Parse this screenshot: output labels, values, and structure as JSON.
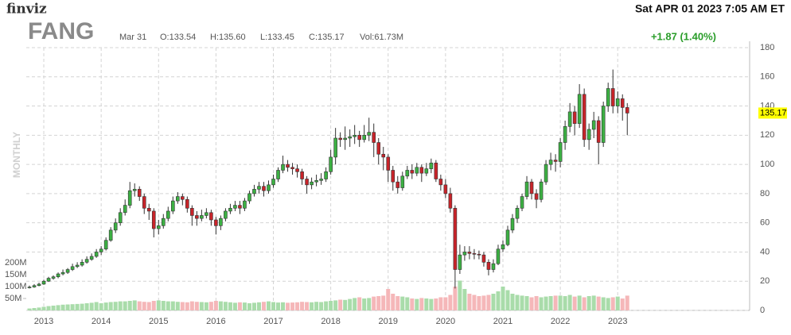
{
  "chart_data": {
    "type": "candlestick",
    "brand": "finviz",
    "datetime": "Sat APR 01 2023 7:05 AM ET",
    "ticker": "FANG",
    "timeframe": "MONTHLY",
    "info": [
      "Mar 31",
      "O:133.54",
      "H:135.60",
      "L:133.45",
      "C:135.17",
      "Vol:61.73M"
    ],
    "change": "+1.87 (1.40%)",
    "categories": [
      null,
      null,
      null,
      "2013",
      null,
      null,
      null,
      null,
      null,
      null,
      null,
      null,
      null,
      null,
      null,
      "2014",
      null,
      null,
      null,
      null,
      null,
      null,
      null,
      null,
      null,
      null,
      null,
      "2015",
      null,
      null,
      null,
      null,
      null,
      null,
      null,
      null,
      null,
      null,
      null,
      "2016",
      null,
      null,
      null,
      null,
      null,
      null,
      null,
      null,
      null,
      null,
      null,
      "2017",
      null,
      null,
      null,
      null,
      null,
      null,
      null,
      null,
      null,
      null,
      null,
      "2018",
      null,
      null,
      null,
      null,
      null,
      null,
      null,
      null,
      null,
      null,
      null,
      "2019",
      null,
      null,
      null,
      null,
      null,
      null,
      null,
      null,
      null,
      null,
      null,
      "2020",
      null,
      null,
      null,
      null,
      null,
      null,
      null,
      null,
      null,
      null,
      null,
      "2021",
      null,
      null,
      null,
      null,
      null,
      null,
      null,
      null,
      null,
      null,
      null,
      "2022",
      null,
      null,
      null,
      null,
      null,
      null,
      null,
      null,
      null,
      null,
      null,
      "2023",
      null,
      null
    ],
    "open": [
      15.5,
      16,
      17,
      18,
      20,
      22,
      23,
      25,
      26,
      28,
      30,
      31,
      33,
      35,
      37,
      40,
      42,
      48,
      55,
      60,
      67,
      72,
      82,
      83,
      78,
      70,
      68,
      56,
      58,
      63,
      68,
      75,
      78,
      76,
      70,
      65,
      63,
      65,
      67,
      62,
      58,
      63,
      68,
      70,
      72,
      70,
      75,
      80,
      83,
      85,
      82,
      86,
      90,
      96,
      100,
      98,
      97,
      95,
      90,
      86,
      88,
      89,
      90,
      95,
      105,
      118,
      117,
      118,
      119,
      120,
      117,
      120,
      122,
      115,
      107,
      105,
      96,
      88,
      84,
      92,
      96,
      94,
      98,
      94,
      97,
      101,
      90,
      86,
      80,
      70,
      28,
      38,
      40,
      39,
      38.5,
      38,
      33,
      28,
      32,
      42,
      45,
      55,
      63,
      70,
      78,
      88,
      80,
      76,
      88,
      100,
      103,
      102,
      115,
      126,
      136,
      128,
      148,
      117,
      124,
      130,
      115,
      140,
      152,
      140,
      145,
      139
    ],
    "high": [
      17,
      18,
      19,
      21,
      23,
      24,
      26,
      28,
      29,
      32,
      33,
      35,
      37,
      39,
      42,
      44,
      50,
      57,
      63,
      70,
      76,
      88,
      87,
      85,
      80,
      73,
      70,
      62,
      66,
      71,
      78,
      81,
      80,
      78,
      72,
      68,
      69,
      70,
      69,
      64,
      65,
      70,
      73,
      75,
      75,
      77,
      82,
      86,
      88,
      88,
      89,
      93,
      98,
      106,
      103,
      101,
      100,
      97,
      92,
      91,
      93,
      94,
      98,
      110,
      125,
      122,
      126,
      124,
      127,
      123,
      127,
      132,
      128,
      118,
      112,
      107,
      99,
      92,
      95,
      99,
      100,
      101,
      100,
      101,
      104,
      103,
      93,
      90,
      84,
      72,
      45,
      44,
      44,
      42,
      41,
      40,
      35,
      35,
      45,
      48,
      58,
      66,
      72,
      80,
      92,
      90,
      83,
      90,
      103,
      108,
      107,
      118,
      130,
      142,
      140,
      155,
      152,
      128,
      136,
      133,
      143,
      156,
      165,
      150,
      148,
      142
    ],
    "low": [
      15,
      15.5,
      16.5,
      17.5,
      19.5,
      21,
      22,
      24,
      25,
      27,
      29,
      30,
      32,
      34,
      36,
      38,
      41,
      47,
      53,
      58,
      65,
      70,
      78,
      75,
      66,
      62,
      50,
      52,
      56,
      61,
      66,
      73,
      72,
      67,
      58,
      58,
      61,
      63,
      58,
      52,
      55,
      61,
      66,
      68,
      66,
      68,
      73,
      78,
      80,
      78,
      80,
      84,
      88,
      94,
      95,
      93,
      91,
      86,
      80,
      83,
      85,
      86,
      88,
      93,
      100,
      112,
      110,
      112,
      114,
      112,
      115,
      116,
      105,
      100,
      96,
      88,
      82,
      80,
      82,
      90,
      90,
      92,
      88,
      92,
      94,
      88,
      82,
      77,
      67,
      15,
      25,
      34,
      35,
      35,
      35,
      30,
      24,
      26,
      31,
      40,
      44,
      53,
      60,
      68,
      76,
      76,
      70,
      74,
      86,
      96,
      95,
      98,
      110,
      122,
      120,
      125,
      112,
      110,
      118,
      100,
      112,
      136,
      135,
      135,
      130,
      120
    ],
    "close": [
      16,
      17,
      18,
      20,
      22,
      23,
      25,
      26,
      28,
      30,
      31,
      33,
      35,
      37,
      40,
      42,
      48,
      55,
      60,
      67,
      72,
      82,
      83,
      78,
      70,
      68,
      56,
      58,
      63,
      68,
      75,
      78,
      76,
      70,
      65,
      63,
      65,
      67,
      62,
      58,
      63,
      68,
      70,
      72,
      70,
      75,
      80,
      83,
      85,
      82,
      86,
      90,
      96,
      100,
      98,
      97,
      95,
      90,
      86,
      88,
      89,
      90,
      95,
      105,
      118,
      117,
      118,
      119,
      120,
      117,
      120,
      122,
      115,
      107,
      105,
      96,
      88,
      84,
      92,
      96,
      94,
      98,
      94,
      97,
      101,
      90,
      86,
      80,
      70,
      28,
      38,
      40,
      39,
      38.5,
      38,
      33,
      28,
      32,
      42,
      45,
      55,
      63,
      70,
      78,
      88,
      80,
      76,
      88,
      100,
      103,
      102,
      115,
      126,
      136,
      128,
      148,
      117,
      124,
      130,
      115,
      140,
      152,
      140,
      145,
      139,
      135.17
    ],
    "volume": [
      8,
      10,
      12,
      15,
      18,
      20,
      22,
      24,
      25,
      26,
      27,
      28,
      30,
      32,
      35,
      30,
      33,
      35,
      36,
      38,
      38,
      40,
      42,
      38,
      36,
      35,
      40,
      42,
      40,
      38,
      38,
      36,
      35,
      34,
      38,
      36,
      35,
      34,
      36,
      40,
      38,
      36,
      34,
      32,
      34,
      33,
      30,
      32,
      34,
      36,
      38,
      35,
      33,
      34,
      32,
      33,
      34,
      36,
      35,
      34,
      36,
      35,
      38,
      40,
      42,
      45,
      44,
      48,
      52,
      55,
      50,
      52,
      58,
      60,
      62,
      90,
      70,
      60,
      58,
      55,
      50,
      48,
      52,
      50,
      48,
      50,
      55,
      55,
      65,
      100,
      125,
      90,
      70,
      65,
      60,
      62,
      65,
      70,
      80,
      100,
      85,
      70,
      65,
      62,
      60,
      55,
      60,
      55,
      58,
      60,
      62,
      62,
      60,
      65,
      58,
      62,
      55,
      60,
      62,
      58,
      55,
      52,
      55,
      58,
      50,
      62
    ],
    "up_color": "#3cb043",
    "down_color": "#c8242a",
    "vol_up_color": "#a9dcaa",
    "vol_down_color": "#f5b7b9",
    "ylim": [
      0,
      180
    ],
    "yticks": [
      0,
      20,
      40,
      60,
      80,
      100,
      120,
      140,
      160,
      180
    ],
    "vol_lim": [
      0,
      200
    ],
    "vol_ticks": [
      {
        "value": 50,
        "label": "50M"
      },
      {
        "value": 100,
        "label": "100M"
      },
      {
        "value": 150,
        "label": "150M"
      },
      {
        "value": 200,
        "label": "200M"
      }
    ],
    "grid": true
  }
}
